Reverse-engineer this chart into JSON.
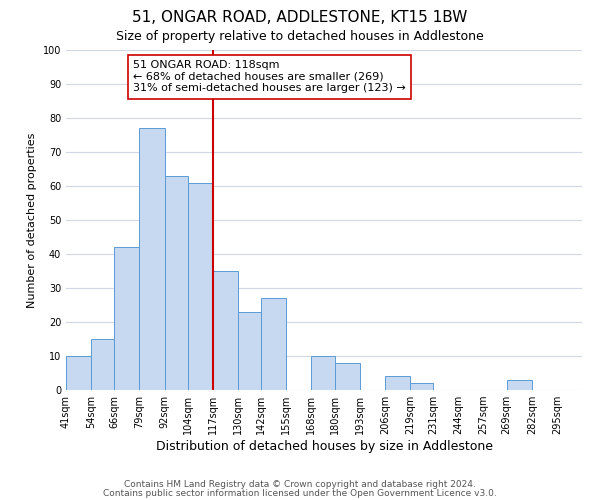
{
  "title": "51, ONGAR ROAD, ADDLESTONE, KT15 1BW",
  "subtitle": "Size of property relative to detached houses in Addlestone",
  "xlabel": "Distribution of detached houses by size in Addlestone",
  "ylabel": "Number of detached properties",
  "bin_labels": [
    "41sqm",
    "54sqm",
    "66sqm",
    "79sqm",
    "92sqm",
    "104sqm",
    "117sqm",
    "130sqm",
    "142sqm",
    "155sqm",
    "168sqm",
    "180sqm",
    "193sqm",
    "206sqm",
    "219sqm",
    "231sqm",
    "244sqm",
    "257sqm",
    "269sqm",
    "282sqm",
    "295sqm"
  ],
  "bin_edges": [
    41,
    54,
    66,
    79,
    92,
    104,
    117,
    130,
    142,
    155,
    168,
    180,
    193,
    206,
    219,
    231,
    244,
    257,
    269,
    282,
    295
  ],
  "bar_heights": [
    10,
    15,
    42,
    77,
    63,
    61,
    35,
    23,
    27,
    0,
    10,
    8,
    0,
    4,
    2,
    0,
    0,
    0,
    3,
    0,
    0
  ],
  "bar_color": "#c6d9f0",
  "bar_edgecolor": "#5b9bd5",
  "vline_x": 117,
  "vline_color": "#cc0000",
  "annotation_text": "51 ONGAR ROAD: 118sqm\n← 68% of detached houses are smaller (269)\n31% of semi-detached houses are larger (123) →",
  "annotation_box_edgecolor": "#cc0000",
  "annotation_box_facecolor": "#ffffff",
  "ylim": [
    0,
    100
  ],
  "grid_color": "#d0d8e8",
  "footnote1": "Contains HM Land Registry data © Crown copyright and database right 2024.",
  "footnote2": "Contains public sector information licensed under the Open Government Licence v3.0.",
  "title_fontsize": 11,
  "subtitle_fontsize": 9,
  "xlabel_fontsize": 9,
  "ylabel_fontsize": 8,
  "tick_fontsize": 7,
  "annotation_fontsize": 8,
  "footnote_fontsize": 6.5,
  "background_color": "#ffffff"
}
